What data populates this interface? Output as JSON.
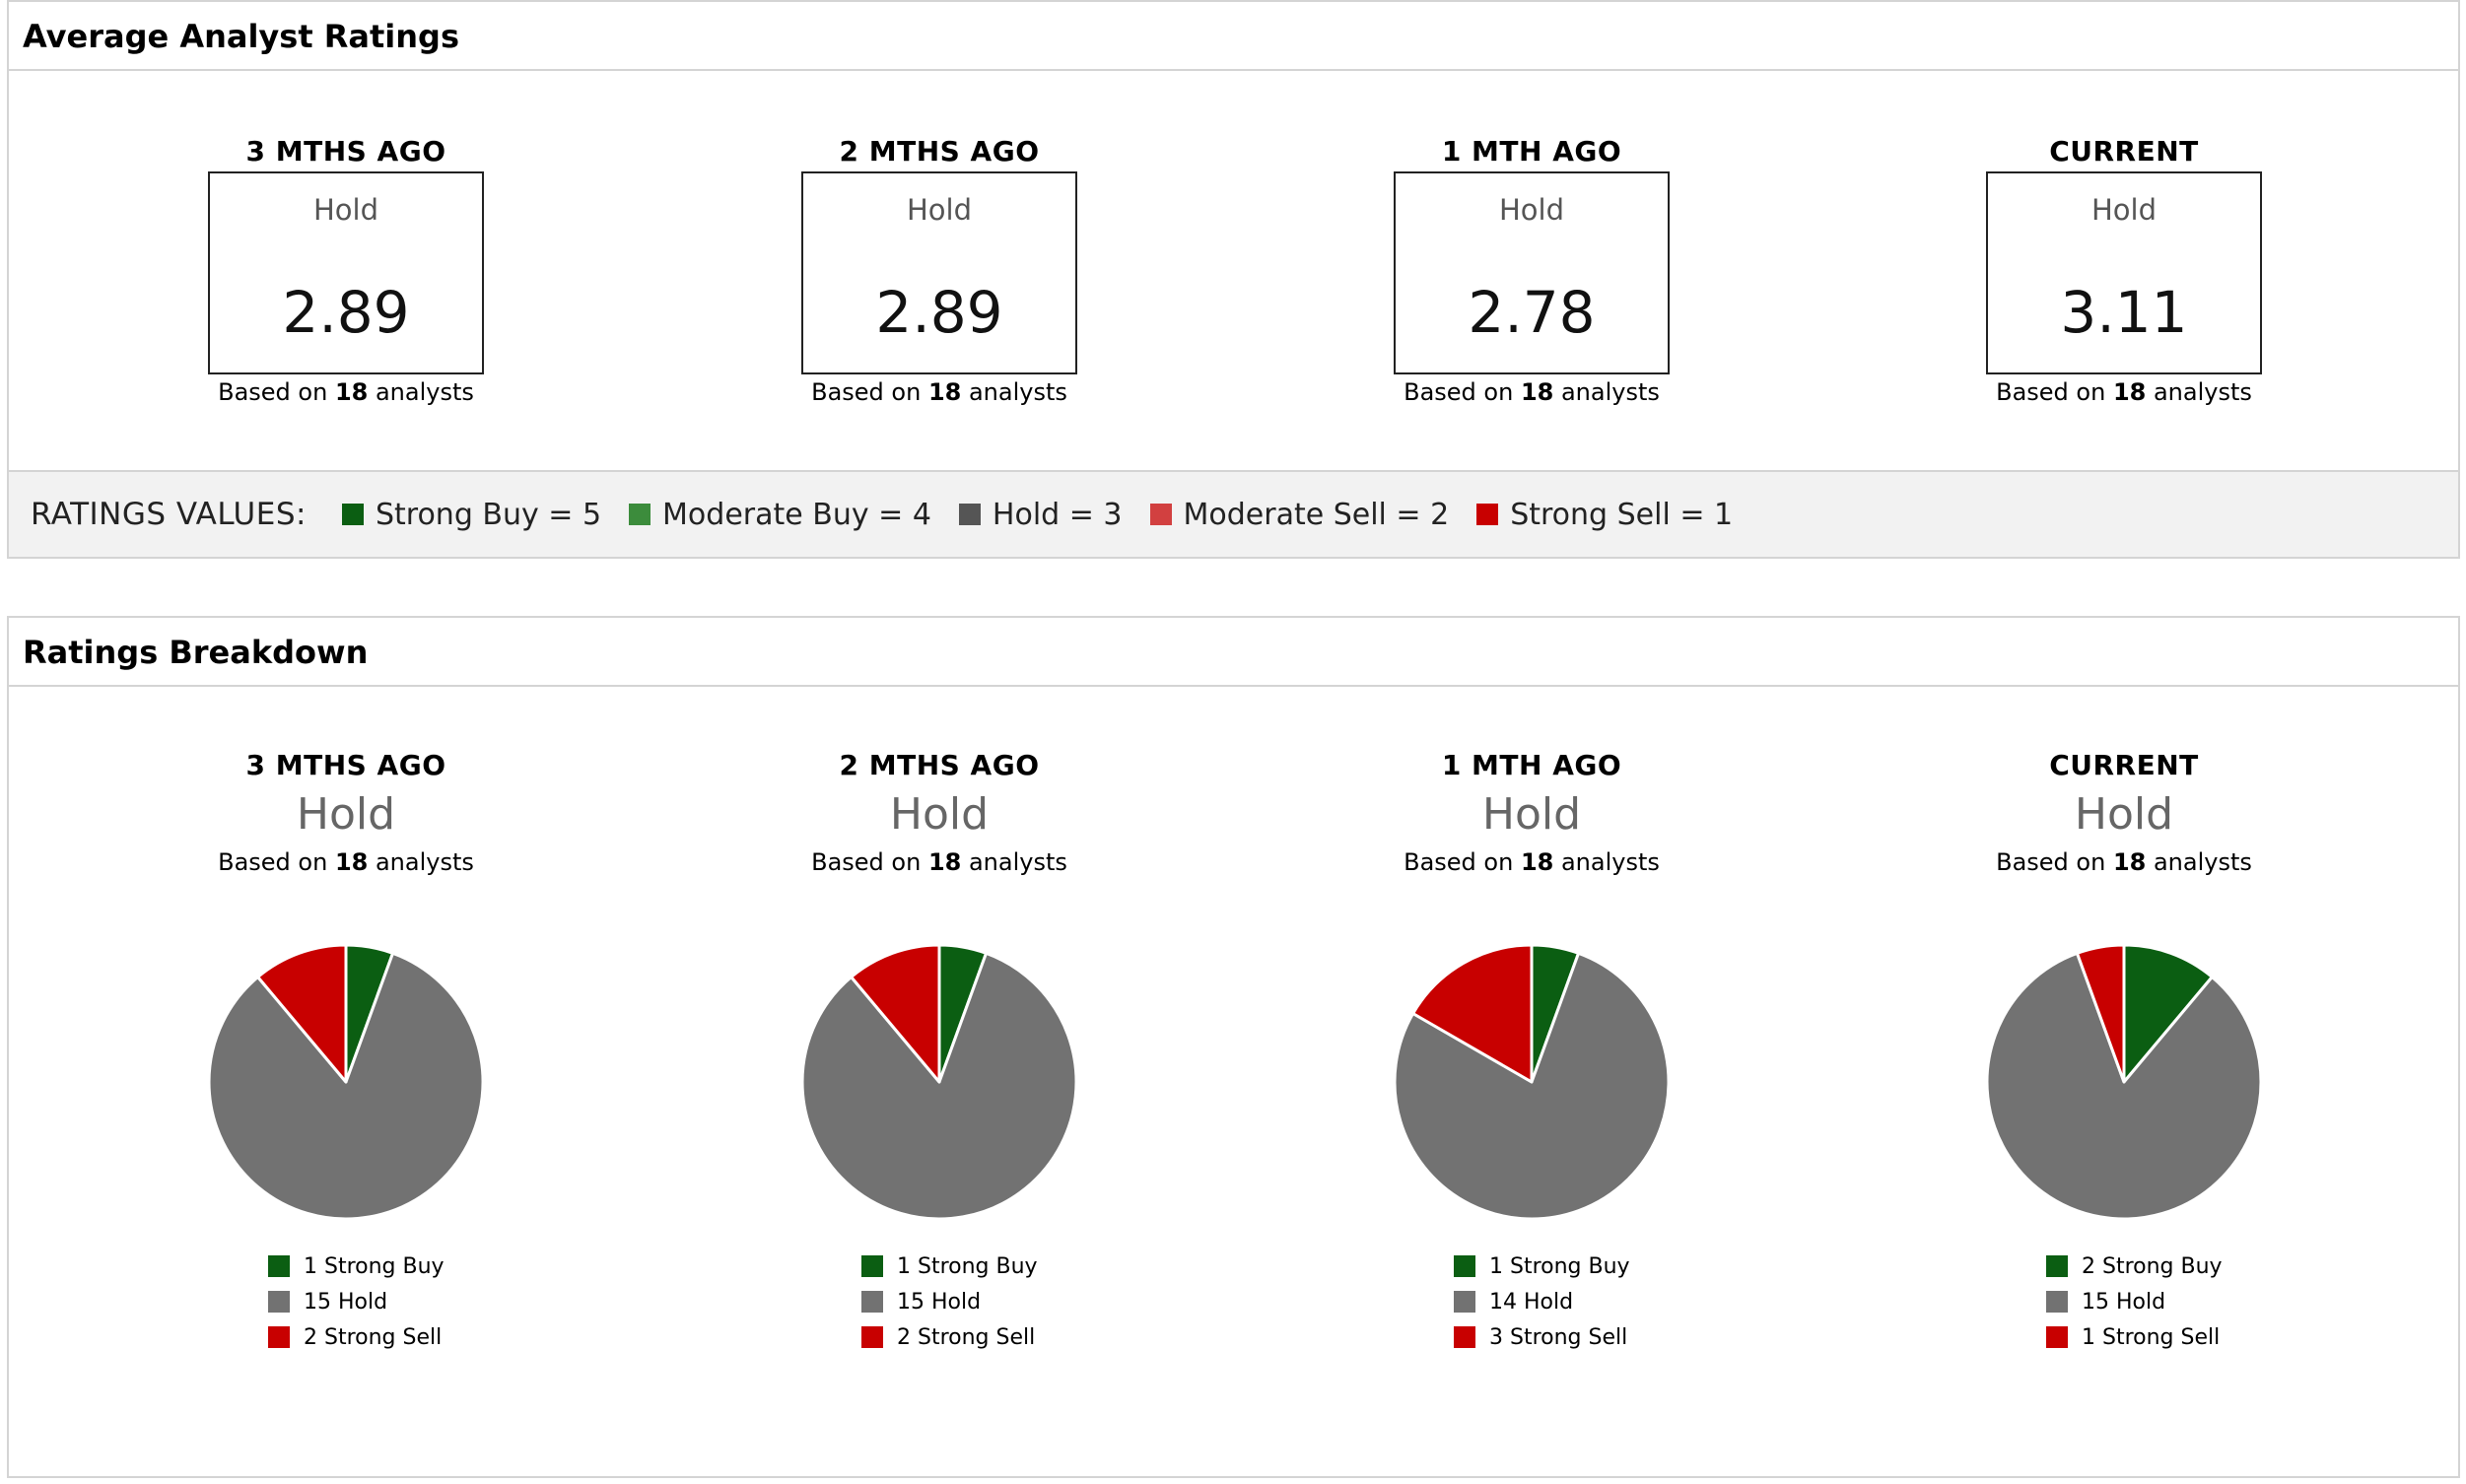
{
  "colors": {
    "strong_buy": "#0b5e12",
    "moderate_buy": "#3c8c3c",
    "hold": "#727272",
    "moderate_sell": "#d24040",
    "strong_sell": "#c80000"
  },
  "average": {
    "header": "Average Analyst Ratings",
    "periods": [
      {
        "title": "3 MTHS AGO",
        "label": "Hold",
        "value": "2.89",
        "based_pre": "Based on ",
        "count": "18",
        "based_post": " analysts"
      },
      {
        "title": "2 MTHS AGO",
        "label": "Hold",
        "value": "2.89",
        "based_pre": "Based on ",
        "count": "18",
        "based_post": " analysts"
      },
      {
        "title": "1 MTH AGO",
        "label": "Hold",
        "value": "2.78",
        "based_pre": "Based on ",
        "count": "18",
        "based_post": " analysts"
      },
      {
        "title": "CURRENT",
        "label": "Hold",
        "value": "3.11",
        "based_pre": "Based on ",
        "count": "18",
        "based_post": " analysts"
      }
    ],
    "ratings_values": {
      "title": "RATINGS VALUES:",
      "items": [
        {
          "label": "Strong Buy = 5",
          "color": "#0b5e12"
        },
        {
          "label": "Moderate Buy = 4",
          "color": "#3c8c3c"
        },
        {
          "label": "Hold = 3",
          "color": "#555555"
        },
        {
          "label": "Moderate Sell = 2",
          "color": "#d24040"
        },
        {
          "label": "Strong Sell = 1",
          "color": "#c80000"
        }
      ]
    }
  },
  "breakdown": {
    "header": "Ratings Breakdown"
  },
  "chart_data": [
    {
      "type": "pie",
      "title": "3 MTHS AGO",
      "subtitle": "Hold",
      "note_pre": "Based on ",
      "note_count": "18",
      "note_post": " analysts",
      "slices": [
        {
          "label": "1 Strong Buy",
          "value": 1,
          "color": "#0b5e12"
        },
        {
          "label": "15 Hold",
          "value": 15,
          "color": "#727272"
        },
        {
          "label": "2 Strong Sell",
          "value": 2,
          "color": "#c80000"
        }
      ]
    },
    {
      "type": "pie",
      "title": "2 MTHS AGO",
      "subtitle": "Hold",
      "note_pre": "Based on ",
      "note_count": "18",
      "note_post": " analysts",
      "slices": [
        {
          "label": "1 Strong Buy",
          "value": 1,
          "color": "#0b5e12"
        },
        {
          "label": "15 Hold",
          "value": 15,
          "color": "#727272"
        },
        {
          "label": "2 Strong Sell",
          "value": 2,
          "color": "#c80000"
        }
      ]
    },
    {
      "type": "pie",
      "title": "1 MTH AGO",
      "subtitle": "Hold",
      "note_pre": "Based on ",
      "note_count": "18",
      "note_post": " analysts",
      "slices": [
        {
          "label": "1 Strong Buy",
          "value": 1,
          "color": "#0b5e12"
        },
        {
          "label": "14 Hold",
          "value": 14,
          "color": "#727272"
        },
        {
          "label": "3 Strong Sell",
          "value": 3,
          "color": "#c80000"
        }
      ]
    },
    {
      "type": "pie",
      "title": "CURRENT",
      "subtitle": "Hold",
      "note_pre": "Based on ",
      "note_count": "18",
      "note_post": " analysts",
      "slices": [
        {
          "label": "2 Strong Buy",
          "value": 2,
          "color": "#0b5e12"
        },
        {
          "label": "15 Hold",
          "value": 15,
          "color": "#727272"
        },
        {
          "label": "1 Strong Sell",
          "value": 1,
          "color": "#c80000"
        }
      ]
    }
  ]
}
